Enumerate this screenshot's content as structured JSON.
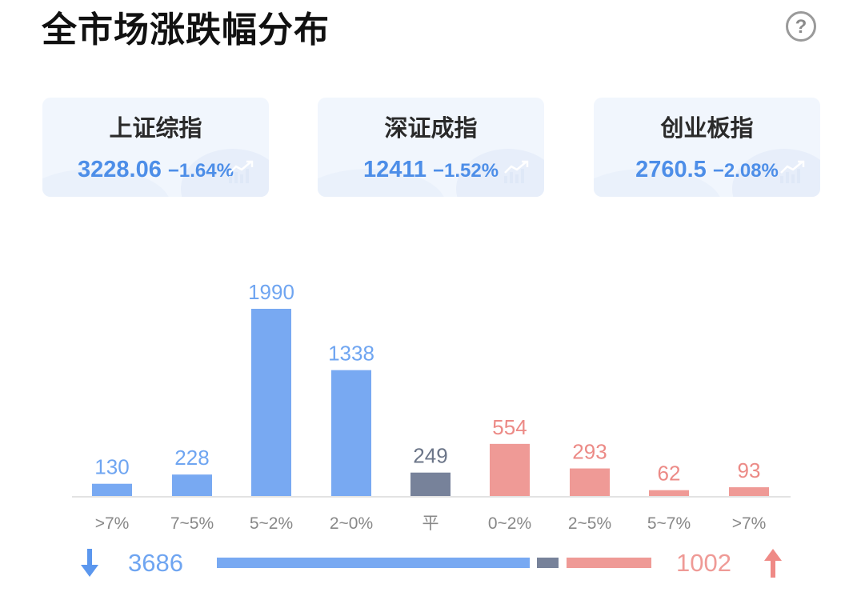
{
  "header": {
    "title": "全市场涨跌幅分布",
    "help_icon": "?"
  },
  "indices": [
    {
      "name": "上证综指",
      "value": "3228.06",
      "change": "−1.64%"
    },
    {
      "name": "深证成指",
      "value": "12411",
      "change": "−1.52%"
    },
    {
      "name": "创业板指",
      "value": "2760.5",
      "change": "−2.08%"
    }
  ],
  "colors": {
    "down": "#78a9f2",
    "flat": "#77829a",
    "up": "#ef9a96",
    "down_text": "#4d8ee8"
  },
  "chart_data": {
    "type": "bar",
    "categories": [
      ">7%",
      "7~5%",
      "5~2%",
      "2~0%",
      "平",
      "0~2%",
      "2~5%",
      "5~7%",
      ">7%"
    ],
    "values": [
      130,
      228,
      1990,
      1338,
      249,
      554,
      293,
      62,
      93
    ],
    "groups": [
      "down",
      "down",
      "down",
      "down",
      "flat",
      "up",
      "up",
      "up",
      "up"
    ],
    "title": "全市场涨跌幅分布"
  },
  "summary": {
    "down_count": "3686",
    "up_count": "1002",
    "flat_count": 249
  }
}
